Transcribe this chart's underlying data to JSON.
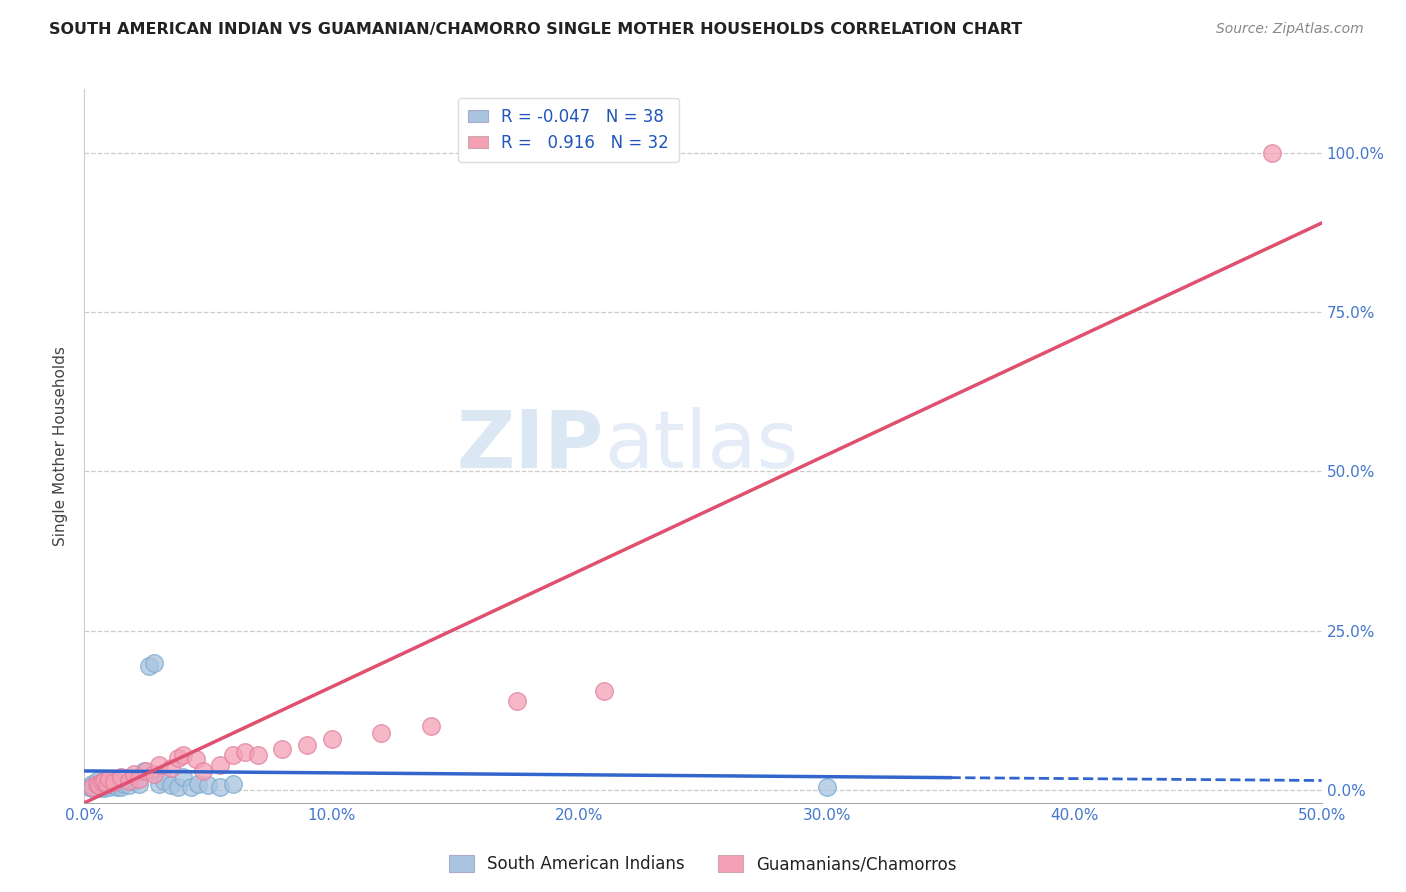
{
  "title": "SOUTH AMERICAN INDIAN VS GUAMANIAN/CHAMORRO SINGLE MOTHER HOUSEHOLDS CORRELATION CHART",
  "source": "Source: ZipAtlas.com",
  "ylabel": "Single Mother Households",
  "xlim": [
    0.0,
    0.5
  ],
  "ylim": [
    -0.02,
    1.1
  ],
  "plot_ylim": [
    0.0,
    1.1
  ],
  "xticks": [
    0.0,
    0.1,
    0.2,
    0.3,
    0.4,
    0.5
  ],
  "xticklabels": [
    "0.0%",
    "10.0%",
    "20.0%",
    "30.0%",
    "40.0%",
    "50.0%"
  ],
  "yticks": [
    0.0,
    0.25,
    0.5,
    0.75,
    1.0
  ],
  "yticklabels": [
    "0.0%",
    "25.0%",
    "50.0%",
    "75.0%",
    "100.0%"
  ],
  "blue_R": -0.047,
  "blue_N": 38,
  "pink_R": 0.916,
  "pink_N": 32,
  "blue_color": "#a8c4e0",
  "pink_color": "#f4a0b5",
  "blue_line_color": "#3366cc",
  "pink_line_color": "#e05070",
  "legend_label_blue": "South American Indians",
  "legend_label_pink": "Guamanians/Chamorros",
  "watermark_zip": "ZIP",
  "watermark_atlas": "atlas",
  "blue_scatter_x": [
    0.002,
    0.003,
    0.004,
    0.005,
    0.005,
    0.006,
    0.006,
    0.007,
    0.007,
    0.008,
    0.008,
    0.009,
    0.01,
    0.01,
    0.011,
    0.012,
    0.013,
    0.014,
    0.015,
    0.016,
    0.018,
    0.02,
    0.022,
    0.024,
    0.026,
    0.028,
    0.03,
    0.032,
    0.035,
    0.038,
    0.04,
    0.043,
    0.046,
    0.05,
    0.055,
    0.06,
    0.3,
    0.003
  ],
  "blue_scatter_y": [
    0.005,
    0.01,
    0.005,
    0.015,
    0.005,
    0.008,
    0.003,
    0.012,
    0.005,
    0.01,
    0.003,
    0.008,
    0.015,
    0.005,
    0.01,
    0.008,
    0.005,
    0.012,
    0.005,
    0.01,
    0.008,
    0.015,
    0.01,
    0.03,
    0.195,
    0.2,
    0.01,
    0.015,
    0.008,
    0.005,
    0.02,
    0.005,
    0.01,
    0.008,
    0.005,
    0.01,
    0.005,
    0.003
  ],
  "pink_scatter_x": [
    0.003,
    0.005,
    0.006,
    0.007,
    0.008,
    0.009,
    0.01,
    0.012,
    0.015,
    0.018,
    0.02,
    0.022,
    0.025,
    0.028,
    0.03,
    0.035,
    0.038,
    0.04,
    0.045,
    0.048,
    0.055,
    0.06,
    0.065,
    0.07,
    0.08,
    0.09,
    0.1,
    0.12,
    0.14,
    0.175,
    0.21,
    0.48
  ],
  "pink_scatter_y": [
    0.005,
    0.01,
    0.008,
    0.012,
    0.015,
    0.01,
    0.018,
    0.012,
    0.02,
    0.015,
    0.025,
    0.018,
    0.03,
    0.025,
    0.04,
    0.035,
    0.05,
    0.055,
    0.048,
    0.03,
    0.04,
    0.055,
    0.06,
    0.055,
    0.065,
    0.07,
    0.08,
    0.09,
    0.1,
    0.14,
    0.155,
    1.0
  ],
  "blue_trend_x": [
    0.0,
    0.5
  ],
  "blue_trend_y": [
    0.03,
    0.015
  ],
  "pink_trend_x": [
    0.0,
    0.5
  ],
  "pink_trend_y": [
    -0.02,
    0.89
  ]
}
